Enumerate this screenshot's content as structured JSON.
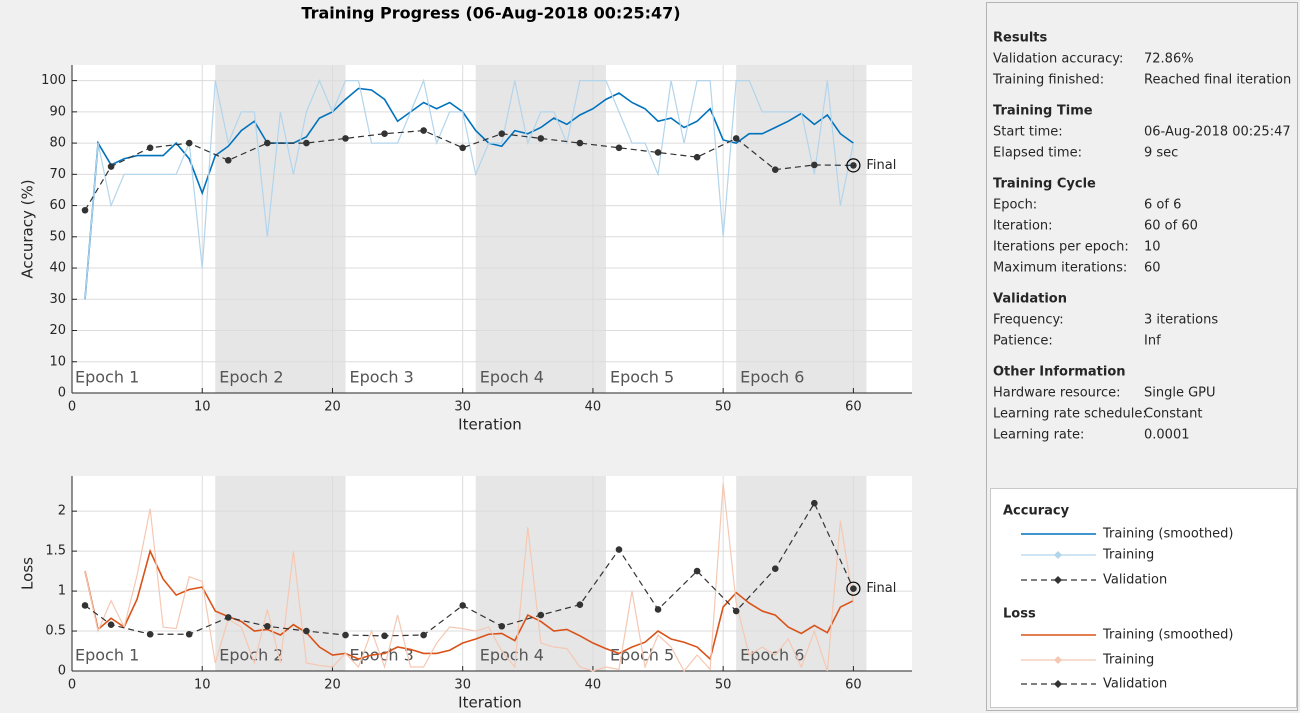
{
  "title": "Training Progress (06-Aug-2018 00:25:47)",
  "chart_data": [
    {
      "type": "line",
      "legend_title": "Accuracy",
      "ylabel": "Accuracy (%)",
      "xlabel": "Iteration",
      "xlim": [
        0,
        64.5
      ],
      "xticks": [
        0,
        10,
        20,
        30,
        40,
        50,
        60
      ],
      "ylim": [
        0,
        105
      ],
      "yticks": [
        0,
        10,
        20,
        30,
        40,
        50,
        60,
        70,
        80,
        90,
        100
      ],
      "grid": true,
      "epochs": {
        "labels": [
          "Epoch 1",
          "Epoch 2",
          "Epoch 3",
          "Epoch 4",
          "Epoch 5",
          "Epoch 6"
        ],
        "bounds": [
          1,
          11,
          21,
          31,
          41,
          51,
          61
        ],
        "shade_color": "#e6e6e6"
      },
      "annotation": "Final",
      "series": [
        {
          "name": "Training (smoothed)",
          "color": "#0072bd",
          "line_style": "solid",
          "width": 1.6,
          "x": [
            1,
            2,
            3,
            4,
            5,
            6,
            7,
            8,
            9,
            10,
            11,
            12,
            13,
            14,
            15,
            16,
            17,
            18,
            19,
            20,
            21,
            22,
            23,
            24,
            25,
            26,
            27,
            28,
            29,
            30,
            31,
            32,
            33,
            34,
            35,
            36,
            37,
            38,
            39,
            40,
            41,
            42,
            43,
            44,
            45,
            46,
            47,
            48,
            49,
            50,
            51,
            52,
            53,
            54,
            55,
            56,
            57,
            58,
            59,
            60
          ],
          "values": [
            30,
            80,
            73,
            75,
            76,
            76,
            76,
            80,
            75,
            64,
            76,
            79,
            84,
            87,
            80,
            80,
            80,
            82,
            88,
            90,
            94,
            97.5,
            97,
            94,
            87,
            90,
            93,
            91,
            93,
            90,
            84,
            80,
            79,
            84,
            83,
            85,
            88,
            86,
            89,
            91,
            94,
            96,
            93,
            91,
            87,
            88,
            85,
            87,
            91,
            81,
            80,
            83,
            83,
            85,
            87,
            89.5,
            86,
            89,
            83,
            80
          ]
        },
        {
          "name": "Training",
          "color": "#b3d5ec",
          "line_style": "solid",
          "width": 1.2,
          "x": [
            1,
            2,
            3,
            4,
            5,
            6,
            7,
            8,
            9,
            10,
            11,
            12,
            13,
            14,
            15,
            16,
            17,
            18,
            19,
            20,
            21,
            22,
            23,
            24,
            25,
            26,
            27,
            28,
            29,
            30,
            31,
            32,
            33,
            34,
            35,
            36,
            37,
            38,
            39,
            40,
            41,
            42,
            43,
            44,
            45,
            46,
            47,
            48,
            49,
            50,
            51,
            52,
            53,
            54,
            55,
            56,
            57,
            58,
            59,
            60
          ],
          "values": [
            30,
            80,
            60,
            70,
            70,
            70,
            70,
            70,
            80,
            40,
            100,
            80,
            90,
            90,
            50,
            90,
            70,
            90,
            100,
            90,
            100,
            100,
            80,
            80,
            80,
            90,
            100,
            80,
            90,
            90,
            70,
            80,
            80,
            100,
            80,
            90,
            90,
            80,
            100,
            100,
            100,
            90,
            80,
            80,
            70,
            100,
            80,
            100,
            100,
            50,
            100,
            100,
            90,
            90,
            90,
            90,
            70,
            100,
            60,
            80
          ]
        },
        {
          "name": "Validation",
          "color": "#333333",
          "line_style": "dashed",
          "width": 1.2,
          "marker": "circle",
          "x": [
            1,
            3,
            6,
            9,
            12,
            15,
            18,
            21,
            24,
            27,
            30,
            33,
            36,
            39,
            42,
            45,
            48,
            51,
            54,
            57,
            60
          ],
          "values": [
            58.5,
            72.5,
            78.5,
            80,
            74.5,
            80,
            80,
            81.5,
            83,
            84,
            78.5,
            83,
            81.5,
            80,
            78.5,
            77,
            75.5,
            81.5,
            71.5,
            73,
            72.86
          ]
        }
      ]
    },
    {
      "type": "line",
      "legend_title": "Loss",
      "ylabel": "Loss",
      "xlabel": "Iteration",
      "xlim": [
        0,
        64.5
      ],
      "xticks": [
        0,
        10,
        20,
        30,
        40,
        50,
        60
      ],
      "ylim": [
        0,
        2.44
      ],
      "yticks": [
        0,
        0.5,
        1,
        1.5,
        2
      ],
      "grid": true,
      "epochs": {
        "labels": [
          "Epoch 1",
          "Epoch 2",
          "Epoch 3",
          "Epoch 4",
          "Epoch 5",
          "Epoch 6"
        ],
        "bounds": [
          1,
          11,
          21,
          31,
          41,
          51,
          61
        ],
        "shade_color": "#e6e6e6"
      },
      "annotation": "Final",
      "series": [
        {
          "name": "Training (smoothed)",
          "color": "#d95319",
          "line_style": "solid",
          "width": 1.6,
          "x": [
            1,
            2,
            3,
            4,
            5,
            6,
            7,
            8,
            9,
            10,
            11,
            12,
            13,
            14,
            15,
            16,
            17,
            18,
            19,
            20,
            21,
            22,
            23,
            24,
            25,
            26,
            27,
            28,
            29,
            30,
            31,
            32,
            33,
            34,
            35,
            36,
            37,
            38,
            39,
            40,
            41,
            42,
            43,
            44,
            45,
            46,
            47,
            48,
            49,
            50,
            51,
            52,
            53,
            54,
            55,
            56,
            57,
            58,
            59,
            60
          ],
          "values": [
            1.25,
            0.52,
            0.66,
            0.55,
            0.9,
            1.5,
            1.15,
            0.95,
            1.02,
            1.05,
            0.75,
            0.68,
            0.62,
            0.5,
            0.52,
            0.45,
            0.58,
            0.48,
            0.3,
            0.2,
            0.22,
            0.15,
            0.2,
            0.22,
            0.3,
            0.27,
            0.22,
            0.22,
            0.26,
            0.35,
            0.4,
            0.46,
            0.47,
            0.38,
            0.7,
            0.62,
            0.5,
            0.52,
            0.44,
            0.35,
            0.28,
            0.22,
            0.3,
            0.36,
            0.5,
            0.4,
            0.36,
            0.3,
            0.15,
            0.8,
            0.98,
            0.85,
            0.75,
            0.7,
            0.55,
            0.47,
            0.57,
            0.48,
            0.8,
            0.88
          ]
        },
        {
          "name": "Training",
          "color": "#f5c8b3",
          "line_style": "solid",
          "width": 1.2,
          "x": [
            1,
            2,
            3,
            4,
            5,
            6,
            7,
            8,
            9,
            10,
            11,
            12,
            13,
            14,
            15,
            16,
            17,
            18,
            19,
            20,
            21,
            22,
            23,
            24,
            25,
            26,
            27,
            28,
            29,
            30,
            31,
            32,
            33,
            34,
            35,
            36,
            37,
            38,
            39,
            40,
            41,
            42,
            43,
            44,
            45,
            46,
            47,
            48,
            49,
            50,
            51,
            52,
            53,
            54,
            55,
            56,
            57,
            58,
            59,
            60
          ],
          "values": [
            1.25,
            0.5,
            0.88,
            0.55,
            1.2,
            2.03,
            0.55,
            0.53,
            1.18,
            1.12,
            0.1,
            0.65,
            0.55,
            0.1,
            0.77,
            0.1,
            1.5,
            0.1,
            0.07,
            0.05,
            0.22,
            0.05,
            0.5,
            0.05,
            0.7,
            0.05,
            0.05,
            0.35,
            0.55,
            0.53,
            0.5,
            0.55,
            0.25,
            0.05,
            1.8,
            0.35,
            0.3,
            0.28,
            0.05,
            0,
            0.05,
            0.02,
            1,
            0.05,
            0.45,
            0.3,
            0,
            0.2,
            0.02,
            2.35,
            0.85,
            0.2,
            0.3,
            0.2,
            0.4,
            0.05,
            0.5,
            0,
            1.88,
            0.86
          ]
        },
        {
          "name": "Validation",
          "color": "#333333",
          "line_style": "dashed",
          "width": 1.2,
          "marker": "circle",
          "x": [
            1,
            3,
            6,
            9,
            12,
            15,
            18,
            21,
            24,
            27,
            30,
            33,
            36,
            39,
            42,
            45,
            48,
            51,
            54,
            57,
            60
          ],
          "values": [
            0.82,
            0.58,
            0.46,
            0.46,
            0.67,
            0.56,
            0.5,
            0.45,
            0.44,
            0.45,
            0.82,
            0.56,
            0.7,
            0.83,
            1.52,
            0.77,
            1.25,
            0.75,
            1.28,
            2.1,
            1.03
          ]
        }
      ]
    }
  ],
  "info": {
    "sections": [
      {
        "heading": "Results",
        "rows": [
          [
            "Validation accuracy:",
            "72.86%"
          ],
          [
            "Training finished:",
            "Reached final iteration"
          ]
        ]
      },
      {
        "heading": "Training Time",
        "rows": [
          [
            "Start time:",
            "06-Aug-2018 00:25:47"
          ],
          [
            "Elapsed time:",
            "9 sec"
          ]
        ]
      },
      {
        "heading": "Training Cycle",
        "rows": [
          [
            "Epoch:",
            "6 of 6"
          ],
          [
            "Iteration:",
            "60 of 60"
          ],
          [
            "Iterations per epoch:",
            "10"
          ],
          [
            "Maximum iterations:",
            "60"
          ]
        ]
      },
      {
        "heading": "Validation",
        "rows": [
          [
            "Frequency:",
            "3 iterations"
          ],
          [
            "Patience:",
            "Inf"
          ]
        ]
      },
      {
        "heading": "Other Information",
        "rows": [
          [
            "Hardware resource:",
            "Single GPU"
          ],
          [
            "Learning rate schedule:",
            "Constant"
          ],
          [
            "Learning rate:",
            "0.0001"
          ]
        ]
      }
    ]
  }
}
